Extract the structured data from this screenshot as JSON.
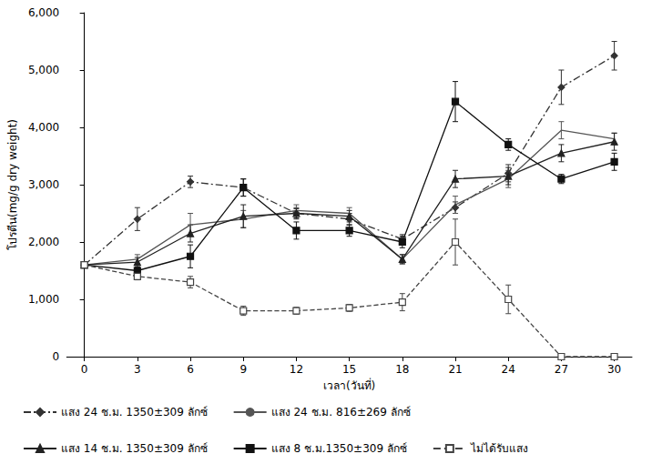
{
  "chart_data": {
    "type": "line",
    "x_label": "เวลา(วันที่)",
    "y_label": "โปรตีน(mg/g dry weight)",
    "x": [
      0,
      3,
      6,
      9,
      12,
      15,
      18,
      21,
      24,
      27,
      30
    ],
    "xlim": [
      -1,
      31
    ],
    "xticks": [
      0,
      3,
      6,
      9,
      12,
      15,
      18,
      21,
      24,
      27,
      30
    ],
    "ylim": [
      0,
      6000
    ],
    "yticks": [
      0,
      1000,
      2000,
      3000,
      4000,
      5000,
      6000
    ],
    "grid": false,
    "legend": "bottom",
    "series": [
      {
        "name": "แสง 24 ช.ม. 1350±309 ลักซ์",
        "color": "#333333",
        "marker": "diamond",
        "line_style": "dashdot",
        "values": [
          1600,
          2400,
          3050,
          2950,
          2500,
          2400,
          2050,
          2600,
          3200,
          4700,
          5250
        ],
        "errors": [
          0,
          200,
          100,
          150,
          100,
          100,
          80,
          100,
          150,
          300,
          250
        ]
      },
      {
        "name": "แสง 24 ช.ม. 816±269 ลักซ์",
        "color": "#555555",
        "marker": "none",
        "line_style": "solid",
        "values": [
          1600,
          1700,
          2300,
          2400,
          2550,
          2500,
          1700,
          2650,
          3100,
          3950,
          3800
        ],
        "errors": [
          0,
          80,
          200,
          150,
          100,
          100,
          80,
          150,
          150,
          150,
          100
        ]
      },
      {
        "name": "แสง 14 ช.ม. 1350±309 ลักซ์",
        "color": "#222222",
        "marker": "triangle",
        "line_style": "solid",
        "values": [
          1600,
          1650,
          2150,
          2450,
          2500,
          2450,
          1700,
          3100,
          3150,
          3550,
          3750
        ],
        "errors": [
          0,
          80,
          150,
          200,
          80,
          100,
          80,
          150,
          150,
          150,
          150
        ]
      },
      {
        "name": "แสง 8 ช.ม.1350±309 ลักซ์",
        "color": "#111111",
        "marker": "square",
        "line_style": "solid",
        "values": [
          1600,
          1500,
          1750,
          2950,
          2200,
          2200,
          2000,
          4450,
          3700,
          3100,
          3400
        ],
        "errors": [
          0,
          60,
          200,
          150,
          150,
          100,
          100,
          350,
          100,
          80,
          150
        ]
      },
      {
        "name": "ไม่ได้รับแสง",
        "color": "#444444",
        "marker": "open_square",
        "line_style": "dashed",
        "values": [
          1600,
          1400,
          1300,
          800,
          800,
          850,
          950,
          2000,
          1000,
          0,
          0
        ],
        "errors": [
          0,
          60,
          100,
          80,
          60,
          60,
          150,
          400,
          250,
          0,
          0
        ]
      }
    ]
  }
}
